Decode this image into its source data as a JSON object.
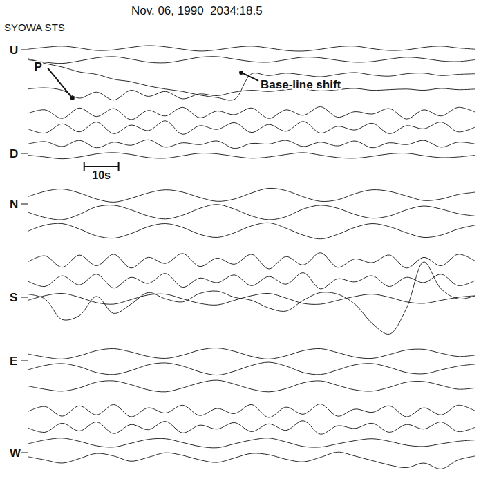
{
  "chart_data": {
    "type": "line",
    "title": "Nov. 06, 1990  2034:18.5",
    "subtitle": "SYOWA STS",
    "color": "#111111",
    "tick_labels": false,
    "xlim": [
      0,
      130
    ],
    "ylim": [
      0,
      20
    ],
    "scale_bar": {
      "start": 16.4,
      "value": 10,
      "label": "10s"
    },
    "panels": [
      {
        "labels": [
          "U",
          "D"
        ],
        "x": [
          0,
          5,
          10,
          15,
          20,
          25,
          30,
          35,
          40,
          45,
          50,
          55,
          60,
          65,
          70,
          75,
          80,
          85,
          90,
          95,
          100,
          105,
          110,
          115,
          120,
          125,
          130
        ],
        "annotations": [
          {
            "text": "P",
            "x": 13,
            "y": 10.5
          },
          {
            "text": "Base-line shift",
            "x": 62,
            "y": 14.7
          }
        ],
        "series": [
          {
            "values": [
              18.5,
              18.8,
              19.0,
              18.7,
              18.3,
              18.4,
              18.8,
              19.1,
              18.9,
              18.5,
              18.2,
              18.4,
              18.8,
              19.0,
              18.7,
              18.3,
              18.2,
              18.5,
              18.9,
              19.0,
              18.6,
              18.3,
              18.4,
              18.8,
              19.0,
              18.7,
              18.5
            ]
          },
          {
            "values": [
              16.8,
              16.4,
              16.2,
              16.6,
              17.1,
              17.3,
              16.9,
              16.4,
              16.3,
              16.7,
              17.2,
              17.3,
              16.9,
              16.5,
              16.4,
              16.8,
              17.2,
              17.1,
              16.7,
              16.4,
              16.5,
              16.9,
              17.2,
              17.0,
              16.6,
              16.5,
              16.8
            ]
          },
          {
            "values": [
              17.0,
              16.2,
              15.6,
              14.8,
              14.4,
              13.6,
              13.2,
              12.5,
              12.0,
              11.6,
              11.0,
              10.6,
              10.3,
              14.5,
              14.2,
              14.6,
              14.3,
              14.0,
              14.4,
              14.7,
              14.3,
              14.1,
              14.5,
              14.6,
              14.2,
              14.4,
              14.5
            ]
          },
          {
            "values": [
              12.0,
              12.2,
              11.8,
              10.5,
              11.5,
              10.2,
              11.8,
              10.8,
              11.6,
              10.4,
              11.2,
              10.9,
              11.5,
              11.8,
              11.6,
              11.9,
              12.0,
              11.7,
              11.9,
              12.1,
              11.8,
              11.9,
              12.0,
              11.8,
              12.1,
              11.9,
              12.0
            ]
          },
          {
            "values": [
              8.0,
              8.6,
              7.2,
              8.9,
              7.5,
              8.8,
              7.0,
              8.5,
              7.6,
              9.0,
              7.3,
              8.4,
              7.8,
              8.9,
              7.2,
              8.6,
              7.7,
              9.1,
              7.4,
              8.3,
              7.9,
              8.8,
              7.1,
              8.6,
              7.6,
              9.0,
              8.2
            ]
          },
          {
            "values": [
              5.5,
              4.8,
              6.3,
              5.0,
              6.6,
              4.7,
              6.1,
              5.2,
              6.8,
              4.6,
              6.0,
              5.4,
              6.5,
              4.9,
              6.2,
              5.1,
              6.7,
              4.8,
              5.9,
              5.3,
              6.4,
              4.7,
              6.0,
              5.5,
              6.6,
              5.0,
              5.8
            ]
          },
          {
            "values": [
              3.0,
              3.4,
              2.6,
              3.6,
              2.4,
              3.3,
              2.8,
              3.7,
              2.5,
              3.2,
              2.9,
              3.5,
              2.3,
              3.1,
              3.0,
              3.6,
              2.6,
              3.3,
              2.7,
              3.5,
              2.4,
              3.2,
              2.9,
              3.6,
              2.5,
              3.3,
              3.0
            ]
          },
          {
            "values": [
              1.2,
              0.9,
              0.6,
              0.9,
              1.4,
              1.6,
              1.3,
              0.8,
              0.7,
              1.1,
              1.5,
              1.4,
              1.0,
              0.7,
              0.9,
              1.3,
              1.6,
              1.2,
              0.8,
              0.7,
              1.0,
              1.4,
              1.5,
              1.1,
              0.8,
              0.9,
              1.2
            ]
          }
        ]
      },
      {
        "labels": [
          "N",
          "S"
        ],
        "x": [
          0,
          5,
          10,
          15,
          20,
          25,
          30,
          35,
          40,
          45,
          50,
          55,
          60,
          65,
          70,
          75,
          80,
          85,
          90,
          95,
          100,
          105,
          110,
          115,
          120,
          125,
          130
        ],
        "series": [
          {
            "values": [
              18.5,
              19.2,
              19.5,
              19.0,
              18.2,
              17.8,
              18.3,
              19.0,
              19.4,
              19.1,
              18.4,
              17.9,
              18.2,
              19.0,
              19.6,
              19.3,
              18.5,
              17.9,
              18.1,
              18.9,
              19.4,
              19.2,
              18.6,
              18.0,
              18.2,
              18.8,
              19.1
            ]
          },
          {
            "values": [
              16.5,
              15.8,
              15.5,
              16.2,
              17.2,
              17.4,
              16.8,
              16.0,
              15.6,
              16.1,
              17.0,
              17.5,
              16.9,
              16.0,
              15.5,
              15.9,
              16.9,
              17.4,
              17.0,
              16.2,
              15.7,
              16.0,
              16.8,
              17.3,
              16.9,
              16.3,
              16.0
            ]
          },
          {
            "values": [
              14.0,
              14.8,
              15.0,
              14.3,
              13.4,
              13.1,
              13.7,
              14.6,
              15.0,
              14.5,
              13.6,
              13.2,
              13.8,
              14.7,
              15.1,
              14.4,
              13.5,
              13.0,
              13.6,
              14.5,
              15.0,
              14.6,
              13.8,
              13.2,
              13.5,
              14.3,
              14.8
            ]
          },
          {
            "values": [
              10.0,
              10.8,
              9.3,
              10.9,
              9.5,
              11.0,
              9.2,
              10.6,
              9.8,
              11.1,
              9.4,
              10.5,
              9.7,
              11.0,
              9.1,
              10.7,
              9.6,
              11.2,
              9.3,
              10.4,
              9.9,
              10.9,
              9.2,
              10.6,
              9.5,
              11.0,
              10.1
            ]
          },
          {
            "values": [
              7.5,
              6.8,
              8.2,
              7.0,
              8.4,
              6.6,
              8.0,
              7.2,
              8.5,
              6.7,
              7.9,
              7.3,
              8.3,
              6.9,
              8.1,
              7.1,
              8.6,
              6.5,
              7.8,
              7.4,
              8.2,
              6.8,
              8.0,
              7.3,
              8.4,
              6.9,
              7.6
            ]
          },
          {
            "values": [
              5.0,
              5.6,
              5.9,
              5.4,
              4.7,
              4.5,
              5.1,
              5.7,
              5.8,
              5.2,
              4.6,
              4.4,
              5.0,
              5.6,
              5.9,
              5.3,
              4.6,
              4.5,
              5.0,
              5.5,
              5.8,
              5.4,
              4.8,
              4.6,
              5.0,
              5.4,
              5.6
            ]
          },
          {
            "values": [
              5.8,
              5.2,
              2.5,
              3.0,
              5.5,
              3.3,
              4.5,
              6.0,
              5.2,
              4.8,
              5.9,
              6.2,
              5.4,
              5.0,
              4.0,
              3.6,
              5.0,
              6.0,
              5.8,
              4.5,
              2.0,
              0.6,
              4.0,
              10.0,
              6.5,
              5.2,
              5.6
            ]
          }
        ]
      },
      {
        "labels": [
          "E",
          "W"
        ],
        "x": [
          0,
          5,
          10,
          15,
          20,
          25,
          30,
          35,
          40,
          45,
          50,
          55,
          60,
          65,
          70,
          75,
          80,
          85,
          90,
          95,
          100,
          105,
          110,
          115,
          120,
          125,
          130
        ],
        "series": [
          {
            "values": [
              18.5,
              18.0,
              17.7,
              18.2,
              19.0,
              19.3,
              18.8,
              18.1,
              17.8,
              18.3,
              19.1,
              19.4,
              18.9,
              18.1,
              17.7,
              18.2,
              19.0,
              19.3,
              18.7,
              18.0,
              17.8,
              18.4,
              19.1,
              19.2,
              18.6,
              18.1,
              18.3
            ]
          },
          {
            "values": [
              16.0,
              16.7,
              17.0,
              16.5,
              15.6,
              15.3,
              15.9,
              16.8,
              17.1,
              16.6,
              15.7,
              15.2,
              15.8,
              16.7,
              17.2,
              16.6,
              15.6,
              15.3,
              16.0,
              16.8,
              17.0,
              16.4,
              15.6,
              15.4,
              16.0,
              16.6,
              16.9
            ]
          },
          {
            "values": [
              13.5,
              13.0,
              12.7,
              13.2,
              14.1,
              14.3,
              13.7,
              12.9,
              12.6,
              13.2,
              14.0,
              14.4,
              13.8,
              13.0,
              12.6,
              13.1,
              14.0,
              14.3,
              13.6,
              12.9,
              12.7,
              13.3,
              14.1,
              14.2,
              13.6,
              13.0,
              13.2
            ]
          },
          {
            "values": [
              9.5,
              10.3,
              8.8,
              10.4,
              9.0,
              10.6,
              8.7,
              10.1,
              9.3,
              10.5,
              8.9,
              10.0,
              9.2,
              10.6,
              8.6,
              10.2,
              9.1,
              10.7,
              8.8,
              9.9,
              9.4,
              10.4,
              8.7,
              10.1,
              9.0,
              10.5,
              9.6
            ]
          },
          {
            "values": [
              7.0,
              6.3,
              7.7,
              6.5,
              7.9,
              6.1,
              7.5,
              6.7,
              8.0,
              6.2,
              7.4,
              6.8,
              7.8,
              6.4,
              7.6,
              6.6,
              8.1,
              6.0,
              7.3,
              6.9,
              7.7,
              6.3,
              7.5,
              6.8,
              7.9,
              6.4,
              7.1
            ]
          },
          {
            "values": [
              4.5,
              5.1,
              5.4,
              4.9,
              4.2,
              4.0,
              4.6,
              5.2,
              5.3,
              4.7,
              4.1,
              3.9,
              4.5,
              5.1,
              5.4,
              4.8,
              4.1,
              4.0,
              4.5,
              5.0,
              5.3,
              4.9,
              4.3,
              4.1,
              4.5,
              4.9,
              5.1
            ]
          },
          {
            "values": [
              2.5,
              2.0,
              1.5,
              2.2,
              3.0,
              2.6,
              1.8,
              2.4,
              3.1,
              2.7,
              2.0,
              1.6,
              2.3,
              3.0,
              2.8,
              2.1,
              1.7,
              2.4,
              3.2,
              2.6,
              1.9,
              1.2,
              0.8,
              1.5,
              0.6,
              2.0,
              2.6
            ]
          }
        ]
      }
    ]
  }
}
